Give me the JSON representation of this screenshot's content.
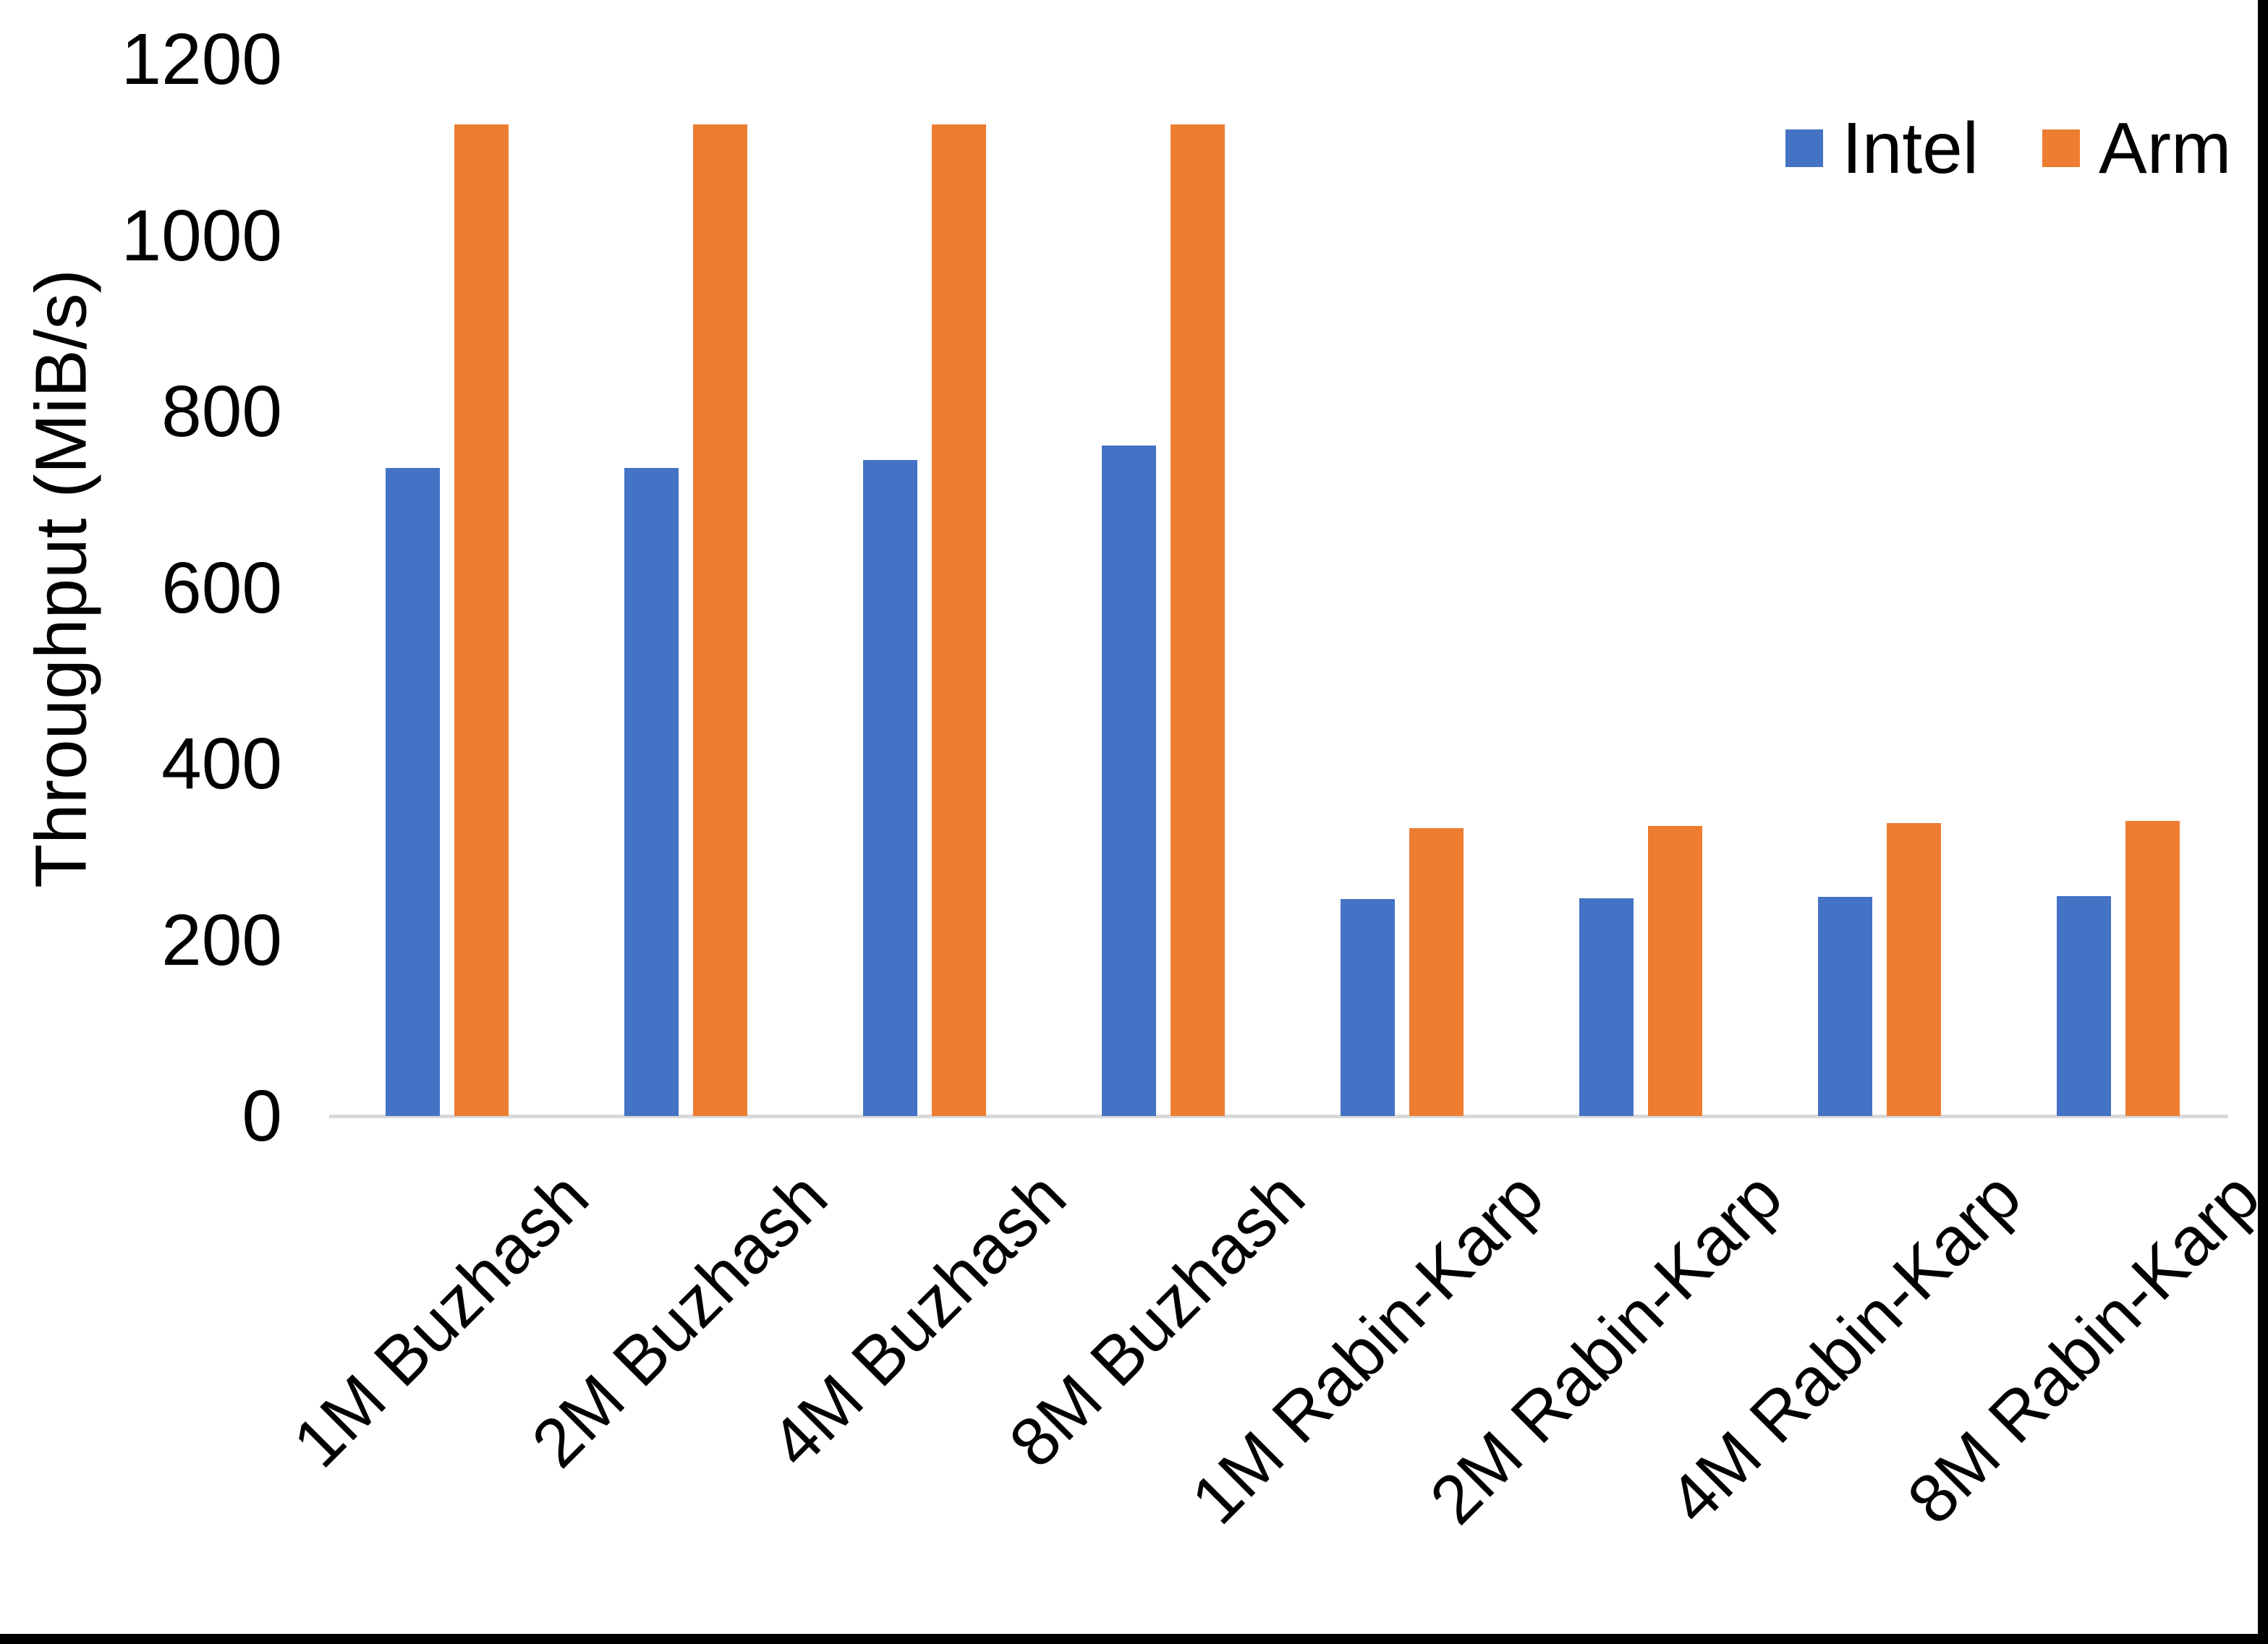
{
  "chart_data": {
    "type": "bar",
    "title": "",
    "xlabel": "",
    "ylabel": "Throughput (MiB/s)",
    "ylim": [
      0,
      1200
    ],
    "yticks": [
      0,
      200,
      400,
      600,
      800,
      1000,
      1200
    ],
    "grid": false,
    "legend_position": "top-right",
    "categories": [
      "1M Buzhash",
      "2M Buzhash",
      "4M Buzhash",
      "8M Buzhash",
      "1M Rabin-Karp",
      "2M Rabin-Karp",
      "4M Rabin-Karp",
      "8M Rabin-Karp"
    ],
    "series": [
      {
        "name": "Intel",
        "color": "#4472C4",
        "values": [
          736,
          736,
          745,
          761,
          246,
          247,
          249,
          250
        ]
      },
      {
        "name": "Arm",
        "color": "#ED7D31",
        "values": [
          1126,
          1126,
          1126,
          1126,
          327,
          329,
          333,
          335
        ]
      }
    ]
  },
  "colors": {
    "background": "#FFFFFF",
    "text": "#000000",
    "axis_line": "#D9D9D9",
    "frame_border": "#000000",
    "intel": "#4472C4",
    "arm": "#ED7D31"
  }
}
